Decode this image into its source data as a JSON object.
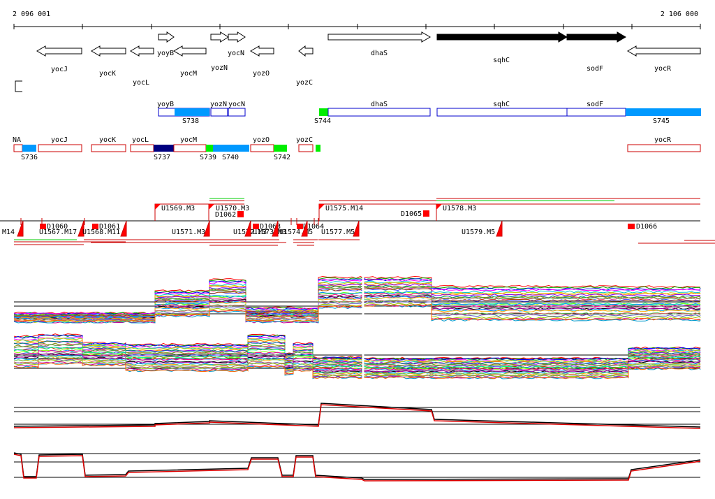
{
  "coords": {
    "start": "2 096 001",
    "end": "2 106 000"
  },
  "colors": {
    "gene_outline": "#000000",
    "gene_filled": "#000000",
    "segment_border_blue": "#0000cc",
    "segment_border_red": "#cc0000",
    "fill_lightblue": "#0099ff",
    "fill_green": "#00ee00",
    "fill_navy": "#000080",
    "fill_red": "#ff0000",
    "line_black": "#000000",
    "line_red": "#dd0000"
  },
  "genes_top": [
    {
      "name": "yocJ",
      "strand": "-",
      "filled": false
    },
    {
      "name": "yocK",
      "strand": "-",
      "filled": false
    },
    {
      "name": "yocL",
      "strand": "-",
      "filled": false
    },
    {
      "name": "yoyB",
      "strand": "+",
      "filled": false
    },
    {
      "name": "yocM",
      "strand": "-",
      "filled": false
    },
    {
      "name": "yozN",
      "strand": "+",
      "filled": false
    },
    {
      "name": "yocN",
      "strand": "+",
      "filled": false
    },
    {
      "name": "yozO",
      "strand": "-",
      "filled": false
    },
    {
      "name": "yozC",
      "strand": "-",
      "filled": false
    },
    {
      "name": "dhaS",
      "strand": "+",
      "filled": false
    },
    {
      "name": "sqhC",
      "strand": "+",
      "filled": true
    },
    {
      "name": "sodF",
      "strand": "+",
      "filled": true
    },
    {
      "name": "yocR",
      "strand": "-",
      "filled": false
    }
  ],
  "segments_plus": {
    "labels": [
      "yoyB",
      "yozN",
      "yocN",
      "dhaS",
      "sqhC",
      "sodF"
    ],
    "sites": [
      "S738",
      "S744",
      "S745"
    ]
  },
  "segments_minus": {
    "labels": [
      "NA",
      "yocJ",
      "yocK",
      "yocL",
      "yocM",
      "yozO",
      "yozC",
      "yocR"
    ],
    "sites": [
      "S736",
      "S737",
      "S739",
      "S740",
      "S742"
    ]
  },
  "features_upper": [
    "U1569.M3",
    "U1570.M3",
    "D1062",
    "U1575.M14",
    "D1065",
    "U1578.M3"
  ],
  "features_lower": [
    "M14",
    "D1060",
    "U1567.M17",
    "U1568.M11",
    "D1061",
    "U1571.M3",
    "U1572.M3",
    "D1063",
    "U1573.M3",
    "U1574.M5",
    "D1064",
    "U1577.M5",
    "U1579.M5",
    "D1066"
  ],
  "panels": [
    {
      "id": "plus-strand-profiles",
      "kind": "multi"
    },
    {
      "id": "minus-strand-profiles",
      "kind": "multi"
    },
    {
      "id": "plus-strand-summary",
      "kind": "summary"
    },
    {
      "id": "minus-strand-summary",
      "kind": "summary"
    }
  ]
}
